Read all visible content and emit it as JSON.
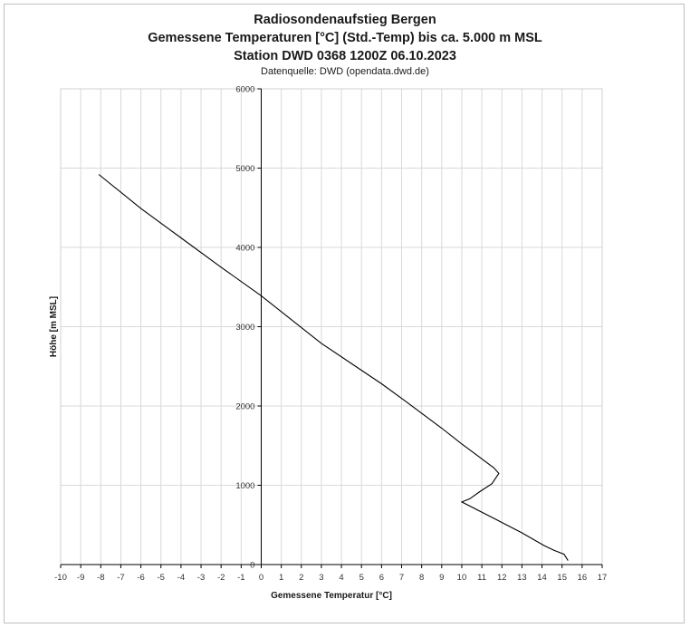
{
  "chart_data": {
    "type": "line",
    "title_lines": [
      "Radiosondenaufstieg Bergen",
      "Gemessene Temperaturen [°C] (Std.-Temp) bis ca. 5.000 m MSL",
      "Station DWD 0368 1200Z 06.10.2023"
    ],
    "subtitle": "Datenquelle: DWD (opendata.dwd.de)",
    "xlabel": "Gemessene Temperatur [°C]",
    "ylabel": "Höhe [m MSL]",
    "xlim": [
      -10,
      17
    ],
    "ylim": [
      0,
      6000
    ],
    "x_ticks": [
      -10,
      -9,
      -8,
      -7,
      -6,
      -5,
      -4,
      -3,
      -2,
      -1,
      0,
      1,
      2,
      3,
      4,
      5,
      6,
      7,
      8,
      9,
      10,
      11,
      12,
      13,
      14,
      15,
      16,
      17
    ],
    "y_ticks": [
      0,
      1000,
      2000,
      3000,
      4000,
      5000,
      6000
    ],
    "grid": true,
    "line_color": "#000000",
    "series": [
      {
        "x": [
          15.3,
          15.1,
          14.6,
          14.1,
          13.0,
          11.7,
          10.0,
          10.4,
          10.9,
          11.5,
          11.85,
          11.6,
          10.8,
          10.0,
          9.0,
          7.2,
          6.0,
          3.0,
          0.0,
          -2.0,
          -4.0,
          -6.0,
          -8.1
        ],
        "y": [
          50,
          130,
          180,
          240,
          400,
          570,
          790,
          830,
          920,
          1020,
          1150,
          1220,
          1370,
          1520,
          1720,
          2060,
          2280,
          2790,
          3390,
          3750,
          4120,
          4490,
          4920
        ]
      }
    ]
  }
}
